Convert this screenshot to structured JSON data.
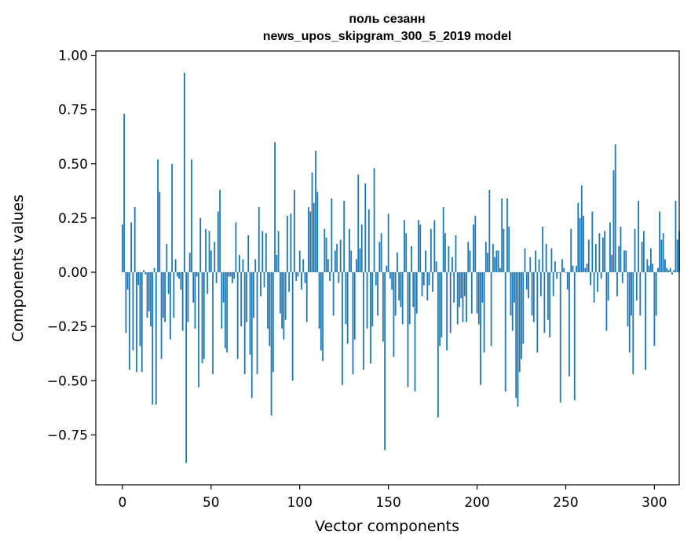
{
  "chart_data": {
    "type": "bar",
    "title": "поль сезанн",
    "subtitle": "news_upos_skipgram_300_5_2019 model",
    "xlabel": "Vector components",
    "ylabel": "Components values",
    "xlim": [
      -15,
      314
    ],
    "ylim": [
      -0.98,
      1.02
    ],
    "x_ticks": [
      0,
      50,
      100,
      150,
      200,
      250,
      300
    ],
    "y_ticks": [
      1.0,
      0.75,
      0.5,
      0.25,
      0.0,
      -0.25,
      -0.5,
      -0.75
    ],
    "y_tick_labels": [
      "1.00",
      "0.75",
      "0.50",
      "0.25",
      "0.00",
      "−0.25",
      "−0.50",
      "−0.75"
    ],
    "x_tick_labels": [
      "0",
      "50",
      "100",
      "150",
      "200",
      "250",
      "300"
    ],
    "grid": false,
    "bar_color": "#1f77b4",
    "values": [
      0.22,
      0.73,
      -0.28,
      -0.08,
      -0.45,
      0.23,
      -0.36,
      0.3,
      -0.46,
      -0.06,
      -0.34,
      -0.46,
      0.01,
      -0.01,
      -0.21,
      -0.18,
      -0.25,
      -0.61,
      0.02,
      -0.61,
      0.52,
      0.37,
      -0.4,
      -0.21,
      -0.23,
      0.13,
      -0.1,
      -0.31,
      0.5,
      -0.21,
      0.06,
      -0.02,
      -0.03,
      -0.08,
      -0.27,
      0.92,
      -0.88,
      -0.23,
      0.09,
      0.52,
      -0.14,
      -0.26,
      -0.02,
      -0.53,
      0.25,
      -0.42,
      -0.4,
      0.2,
      -0.1,
      0.19,
      0.1,
      -0.47,
      0.14,
      -0.05,
      0.28,
      0.38,
      -0.26,
      -0.14,
      -0.35,
      -0.37,
      -0.02,
      -0.02,
      -0.05,
      -0.03,
      0.23,
      -0.4,
      0.08,
      -0.25,
      0.06,
      -0.47,
      -0.23,
      0.17,
      -0.38,
      -0.58,
      -0.21,
      0.06,
      -0.47,
      0.3,
      -0.11,
      0.19,
      -0.07,
      0.18,
      -0.26,
      -0.34,
      -0.66,
      -0.46,
      0.6,
      0.08,
      0.19,
      -0.19,
      -0.26,
      -0.31,
      -0.22,
      0.26,
      -0.09,
      0.27,
      -0.5,
      0.38,
      -0.04,
      -0.02,
      0.1,
      -0.08,
      0.06,
      -0.05,
      -0.23,
      0.3,
      0.28,
      0.46,
      0.32,
      0.56,
      0.37,
      -0.26,
      -0.36,
      -0.41,
      0.2,
      0.16,
      0.06,
      -0.04,
      0.34,
      -0.2,
      0.1,
      0.13,
      -0.05,
      0.15,
      -0.52,
      0.33,
      -0.24,
      -0.33,
      0.2,
      0.1,
      -0.47,
      -0.31,
      0.06,
      0.45,
      0.11,
      0.22,
      -0.45,
      0.41,
      -0.26,
      0.29,
      -0.42,
      -0.25,
      0.48,
      -0.06,
      -0.2,
      0.14,
      0.18,
      -0.32,
      -0.82,
      0.03,
      0.27,
      -0.03,
      -0.08,
      -0.39,
      -0.2,
      0.09,
      -0.13,
      -0.16,
      -0.24,
      0.24,
      0.18,
      -0.53,
      -0.24,
      0.12,
      -0.16,
      -0.55,
      -0.19,
      0.24,
      0.22,
      -0.11,
      -0.06,
      0.1,
      -0.13,
      -0.06,
      0.2,
      -0.09,
      0.24,
      0.05,
      -0.67,
      -0.34,
      -0.3,
      0.3,
      0.18,
      -0.36,
      0.12,
      -0.28,
      0.07,
      -0.14,
      0.17,
      -0.24,
      -0.16,
      -0.12,
      -0.23,
      -0.11,
      -0.23,
      0.14,
      0.1,
      -0.19,
      0.22,
      0.26,
      -0.19,
      -0.24,
      -0.52,
      -0.14,
      -0.37,
      0.14,
      0.09,
      0.38,
      -0.34,
      0.13,
      0.07,
      0.1,
      0.1,
      0.02,
      0.34,
      0.2,
      -0.55,
      0.34,
      0.21,
      -0.2,
      -0.27,
      -0.14,
      -0.58,
      -0.62,
      -0.46,
      -0.4,
      -0.33,
      0.11,
      -0.08,
      -0.12,
      0.07,
      -0.2,
      -0.23,
      0.1,
      -0.37,
      0.06,
      -0.11,
      0.21,
      -0.28,
      0.13,
      -0.22,
      -0.3,
      0.11,
      -0.11,
      0.05,
      -0.03,
      0.0,
      -0.6,
      0.06,
      0.02,
      0.0,
      -0.08,
      -0.48,
      0.2,
      0.03,
      -0.59,
      0.03,
      0.32,
      0.25,
      0.4,
      0.26,
      0.02,
      0.04,
      0.15,
      -0.06,
      0.28,
      -0.14,
      0.13,
      -0.09,
      0.18,
      -0.03,
      0.16,
      0.19,
      -0.27,
      -0.13,
      0.23,
      0.08,
      0.47,
      0.59,
      -0.11,
      0.12,
      0.21,
      -0.05,
      0.1,
      0.1,
      -0.25,
      -0.37,
      -0.2,
      -0.47,
      0.2,
      -0.13,
      0.33,
      -0.2,
      0.14,
      0.19,
      -0.45,
      0.06,
      0.03,
      0.11,
      0.04,
      -0.34,
      -0.2,
      0.02,
      0.28,
      0.15,
      0.18,
      0.06,
      0.02,
      0.01,
      0.02,
      -0.01,
      0.01,
      0.33,
      0.15,
      0.19
    ]
  }
}
